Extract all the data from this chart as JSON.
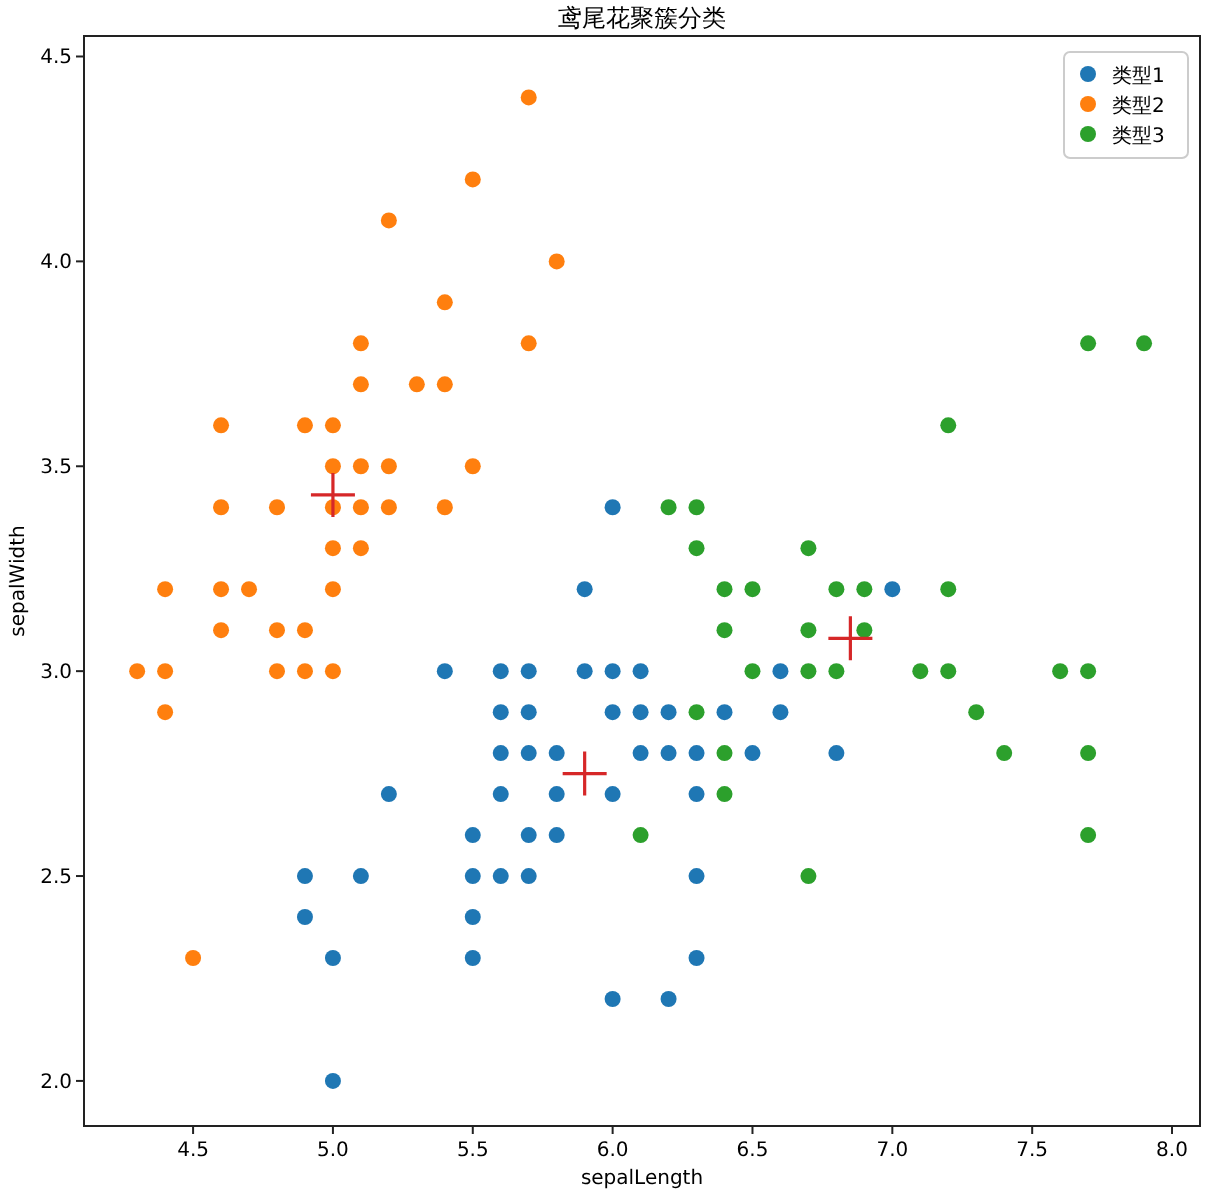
{
  "chart_data": {
    "type": "scatter",
    "title": "鸢尾花聚簇分类",
    "xlabel": "sepalLength",
    "ylabel": "sepalWidth",
    "xlim": [
      4.11,
      8.1
    ],
    "ylim": [
      1.89,
      4.55
    ],
    "xticks": [
      4.5,
      {
        "value": 5,
        "label": "5.0"
      },
      5.5,
      {
        "value": 6,
        "label": "6.0"
      },
      6.5,
      {
        "value": 7,
        "label": "7.0"
      },
      7.5,
      {
        "value": 8,
        "label": "8.0"
      }
    ],
    "yticks": [
      {
        "value": 2,
        "label": "2.0"
      },
      2.5,
      {
        "value": 3,
        "label": "3.0"
      },
      3.5,
      {
        "value": 4,
        "label": "4.0"
      },
      4.5
    ],
    "legend": "top right",
    "grid": false,
    "marker": "circle",
    "series": [
      {
        "name": "类型1",
        "color": "#1f77b4",
        "x": [
          6.0,
          5.9,
          7.0,
          5.4,
          5.6,
          5.7,
          5.9,
          6.0,
          6.1,
          6.6,
          5.6,
          5.7,
          6.0,
          6.1,
          6.2,
          6.4,
          6.6,
          5.6,
          5.7,
          5.8,
          6.1,
          6.2,
          6.3,
          6.5,
          6.8,
          5.2,
          5.6,
          5.8,
          6.0,
          6.3,
          5.5,
          5.7,
          5.8,
          4.9,
          5.1,
          5.5,
          5.6,
          5.7,
          6.3,
          4.9,
          5.5,
          5.0,
          5.5,
          6.3,
          6.0,
          6.2,
          5.0
        ],
        "values": [
          3.4,
          3.2,
          3.2,
          3.0,
          3.0,
          3.0,
          3.0,
          3.0,
          3.0,
          3.0,
          2.9,
          2.9,
          2.9,
          2.9,
          2.9,
          2.9,
          2.9,
          2.8,
          2.8,
          2.8,
          2.8,
          2.8,
          2.8,
          2.8,
          2.8,
          2.7,
          2.7,
          2.7,
          2.7,
          2.7,
          2.6,
          2.6,
          2.6,
          2.5,
          2.5,
          2.5,
          2.5,
          2.5,
          2.5,
          2.4,
          2.4,
          2.3,
          2.3,
          2.3,
          2.2,
          2.2,
          2.0
        ]
      },
      {
        "name": "类型2",
        "color": "#ff7f0e",
        "x": [
          5.7,
          5.5,
          5.2,
          5.8,
          5.4,
          5.1,
          5.7,
          5.1,
          5.3,
          5.4,
          4.6,
          4.9,
          5.0,
          5.0,
          5.1,
          5.2,
          5.5,
          4.6,
          4.8,
          5.0,
          5.1,
          5.2,
          5.4,
          5.0,
          5.1,
          4.4,
          4.6,
          4.7,
          5.0,
          4.6,
          4.8,
          4.9,
          4.3,
          4.4,
          4.8,
          4.9,
          5.0,
          4.4,
          4.5
        ],
        "values": [
          4.4,
          4.2,
          4.1,
          4.0,
          3.9,
          3.8,
          3.8,
          3.7,
          3.7,
          3.7,
          3.6,
          3.6,
          3.6,
          3.5,
          3.5,
          3.5,
          3.5,
          3.4,
          3.4,
          3.4,
          3.4,
          3.4,
          3.4,
          3.3,
          3.3,
          3.2,
          3.2,
          3.2,
          3.2,
          3.1,
          3.1,
          3.1,
          3.0,
          3.0,
          3.0,
          3.0,
          3.0,
          2.9,
          2.3
        ]
      },
      {
        "name": "类型3",
        "color": "#2ca02c",
        "x": [
          7.7,
          7.9,
          7.2,
          6.2,
          6.3,
          6.3,
          6.7,
          6.4,
          6.5,
          6.8,
          6.9,
          7.2,
          6.4,
          6.7,
          6.9,
          6.5,
          6.7,
          6.8,
          7.1,
          7.2,
          7.6,
          7.7,
          6.3,
          7.3,
          6.4,
          7.4,
          7.7,
          6.4,
          6.1,
          7.7,
          6.7
        ],
        "values": [
          3.8,
          3.8,
          3.6,
          3.4,
          3.4,
          3.3,
          3.3,
          3.2,
          3.2,
          3.2,
          3.2,
          3.2,
          3.1,
          3.1,
          3.1,
          3.0,
          3.0,
          3.0,
          3.0,
          3.0,
          3.0,
          3.0,
          2.9,
          2.9,
          2.8,
          2.8,
          2.8,
          2.7,
          2.6,
          2.6,
          2.5
        ]
      },
      {
        "color": "#d62728",
        "marker": "cross",
        "x": [
          5.0,
          5.9,
          6.85
        ],
        "values": [
          3.43,
          2.75,
          3.08
        ]
      }
    ]
  }
}
